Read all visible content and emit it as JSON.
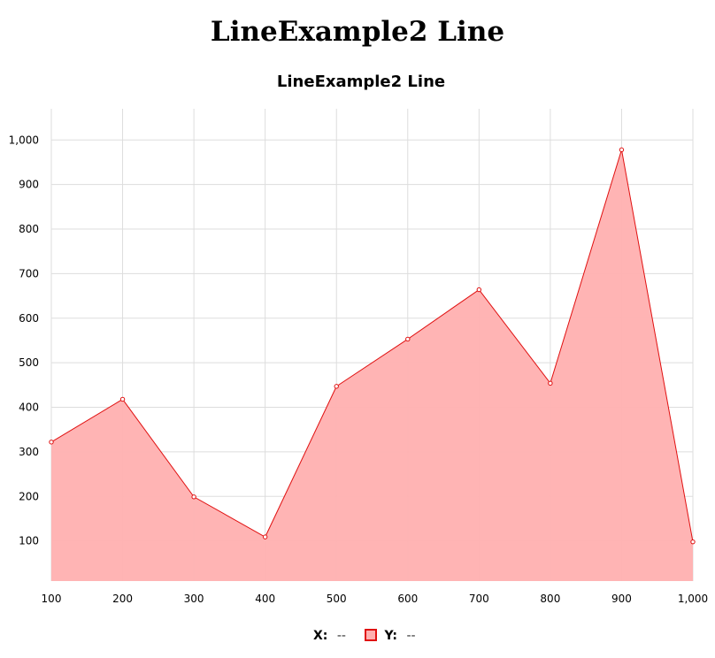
{
  "page": {
    "title": "LineExample2 Line"
  },
  "legend": {
    "x_label": "X:",
    "x_value": "--",
    "y_label": "Y:",
    "y_value": "--"
  },
  "colors": {
    "line": "#e01010",
    "fill": "#ffb0b0",
    "grid": "#dddddd"
  },
  "chart_data": {
    "type": "area",
    "title": "LineExample2 Line",
    "xlabel": "",
    "ylabel": "",
    "x": [
      100,
      200,
      300,
      400,
      500,
      600,
      700,
      800,
      900,
      1000
    ],
    "series": [
      {
        "values": [
          322,
          418,
          199,
          109,
          447,
          553,
          664,
          454,
          978,
          98
        ]
      }
    ],
    "xlim": [
      100,
      1000
    ],
    "ylim": [
      10,
      1070
    ],
    "x_ticks": [
      100,
      200,
      300,
      400,
      500,
      600,
      700,
      800,
      900,
      1000
    ],
    "x_tick_labels": [
      "100",
      "200",
      "300",
      "400",
      "500",
      "600",
      "700",
      "800",
      "900",
      "1,000"
    ],
    "y_ticks": [
      100,
      200,
      300,
      400,
      500,
      600,
      700,
      800,
      900,
      1000
    ],
    "y_tick_labels": [
      "100",
      "200",
      "300",
      "400",
      "500",
      "600",
      "700",
      "800",
      "900",
      "1,000"
    ],
    "grid": true,
    "legend_position": "bottom"
  }
}
